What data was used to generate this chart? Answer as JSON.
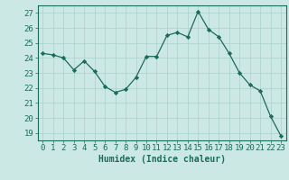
{
  "x": [
    0,
    1,
    2,
    3,
    4,
    5,
    6,
    7,
    8,
    9,
    10,
    11,
    12,
    13,
    14,
    15,
    16,
    17,
    18,
    19,
    20,
    21,
    22,
    23
  ],
  "y": [
    24.3,
    24.2,
    24.0,
    23.2,
    23.8,
    23.1,
    22.1,
    21.7,
    21.9,
    22.7,
    24.1,
    24.1,
    25.5,
    25.7,
    25.4,
    27.1,
    25.9,
    25.4,
    24.3,
    23.0,
    22.2,
    21.8,
    20.1,
    18.8
  ],
  "line_color": "#1a6b5a",
  "marker_color": "#1a6b5a",
  "bg_color": "#cce8e4",
  "grid_color": "#aad0cb",
  "xlabel": "Humidex (Indice chaleur)",
  "ylim_min": 18.5,
  "ylim_max": 27.5,
  "yticks": [
    19,
    20,
    21,
    22,
    23,
    24,
    25,
    26,
    27
  ],
  "xlim_min": -0.5,
  "xlim_max": 23.5,
  "tick_color": "#1a6b5a",
  "label_color": "#1a6b5a",
  "font_size_label": 7.0,
  "font_size_tick": 6.5
}
